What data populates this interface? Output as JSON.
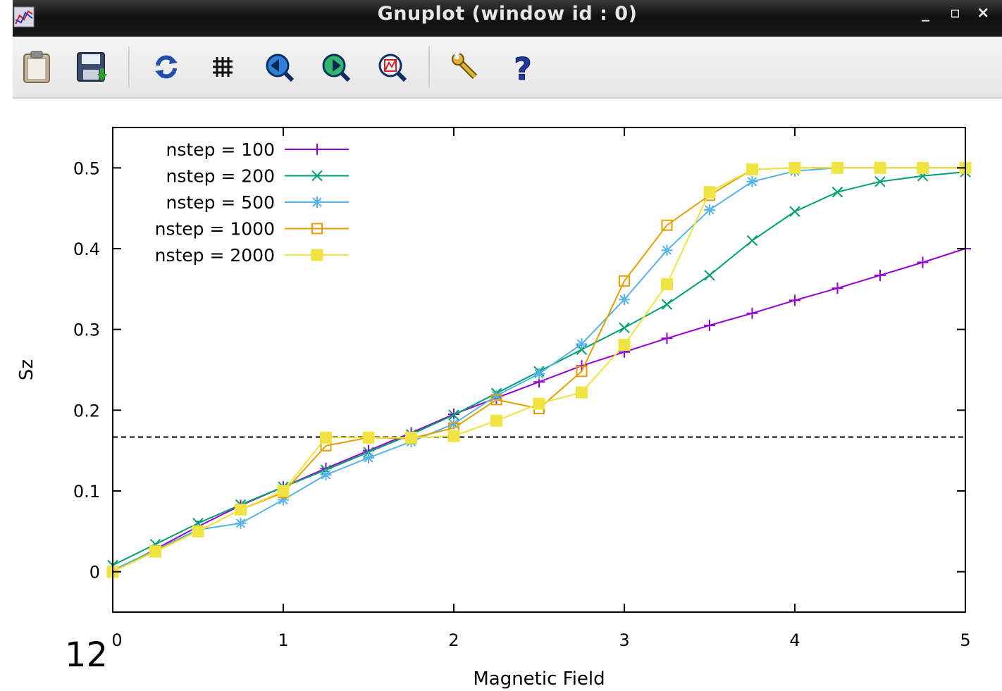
{
  "window": {
    "title": "Gnuplot (window id : 0)",
    "minimize_glyph": "_",
    "maximize_glyph": "▫",
    "close_glyph": "×"
  },
  "toolbar": {
    "buttons": [
      {
        "icon": "clipboard-icon"
      },
      {
        "icon": "save-icon"
      },
      {
        "icon": "replot-icon"
      },
      {
        "icon": "grid-icon"
      },
      {
        "icon": "zoom-previous-icon"
      },
      {
        "icon": "zoom-next-icon"
      },
      {
        "icon": "autoscale-icon"
      },
      {
        "icon": "settings-wrench-icon"
      },
      {
        "icon": "help-icon"
      }
    ]
  },
  "page_number": "12",
  "chart_data": {
    "type": "line",
    "title": "",
    "xlabel": "Magnetic Field",
    "ylabel": "Sz",
    "xlim": [
      0,
      5
    ],
    "ylim": [
      -0.05,
      0.55
    ],
    "xticks": [
      0,
      1,
      2,
      3,
      4,
      5
    ],
    "xtick_labels": [
      "0",
      "1",
      "2",
      "3",
      "4",
      "5"
    ],
    "yticks": [
      0,
      0.1,
      0.2,
      0.3,
      0.4,
      0.5
    ],
    "ytick_labels": [
      "0",
      "0.1",
      "0.2",
      "0.3",
      "0.4",
      "0.5"
    ],
    "grid": false,
    "legend_position": "top-left",
    "reference_line": {
      "y": 0.1667,
      "style": "dashed",
      "color": "#000000"
    },
    "x": [
      0,
      0.25,
      0.5,
      0.75,
      1,
      1.25,
      1.5,
      1.75,
      2,
      2.25,
      2.5,
      2.75,
      3,
      3.25,
      3.5,
      3.75,
      4,
      4.25,
      4.5,
      4.75,
      5
    ],
    "series": [
      {
        "name": "nstep = 100",
        "color": "#9400d3",
        "marker": "plus",
        "values": [
          0.0,
          0.028,
          0.056,
          0.082,
          0.105,
          0.128,
          0.15,
          0.172,
          0.195,
          0.215,
          0.235,
          0.255,
          0.272,
          0.289,
          0.305,
          0.32,
          0.336,
          0.351,
          0.367,
          0.383,
          0.4
        ]
      },
      {
        "name": "nstep = 200",
        "color": "#009e73",
        "marker": "cross",
        "values": [
          0.008,
          0.034,
          0.06,
          0.083,
          0.105,
          0.126,
          0.148,
          0.17,
          0.194,
          0.221,
          0.248,
          0.275,
          0.302,
          0.331,
          0.367,
          0.41,
          0.446,
          0.47,
          0.483,
          0.49,
          0.495
        ]
      },
      {
        "name": "nstep = 500",
        "color": "#56b4e9",
        "marker": "star",
        "values": [
          0.002,
          0.027,
          0.052,
          0.06,
          0.089,
          0.12,
          0.141,
          0.161,
          0.183,
          0.218,
          0.245,
          0.282,
          0.337,
          0.398,
          0.448,
          0.483,
          0.496,
          0.5,
          0.5,
          0.5,
          0.5
        ]
      },
      {
        "name": "nstep = 1000",
        "color": "#e69f00",
        "marker": "open-square",
        "values": [
          0.0,
          0.026,
          0.05,
          0.077,
          0.098,
          0.156,
          0.166,
          0.165,
          0.178,
          0.213,
          0.202,
          0.248,
          0.36,
          0.429,
          0.466,
          0.498,
          0.5,
          0.5,
          0.5,
          0.5,
          0.5
        ]
      },
      {
        "name": "nstep = 2000",
        "color": "#f0e442",
        "marker": "filled-square",
        "values": [
          0.0,
          0.025,
          0.05,
          0.077,
          0.1,
          0.166,
          0.166,
          0.166,
          0.168,
          0.187,
          0.208,
          0.222,
          0.281,
          0.356,
          0.47,
          0.498,
          0.5,
          0.5,
          0.5,
          0.5,
          0.5
        ]
      }
    ]
  }
}
